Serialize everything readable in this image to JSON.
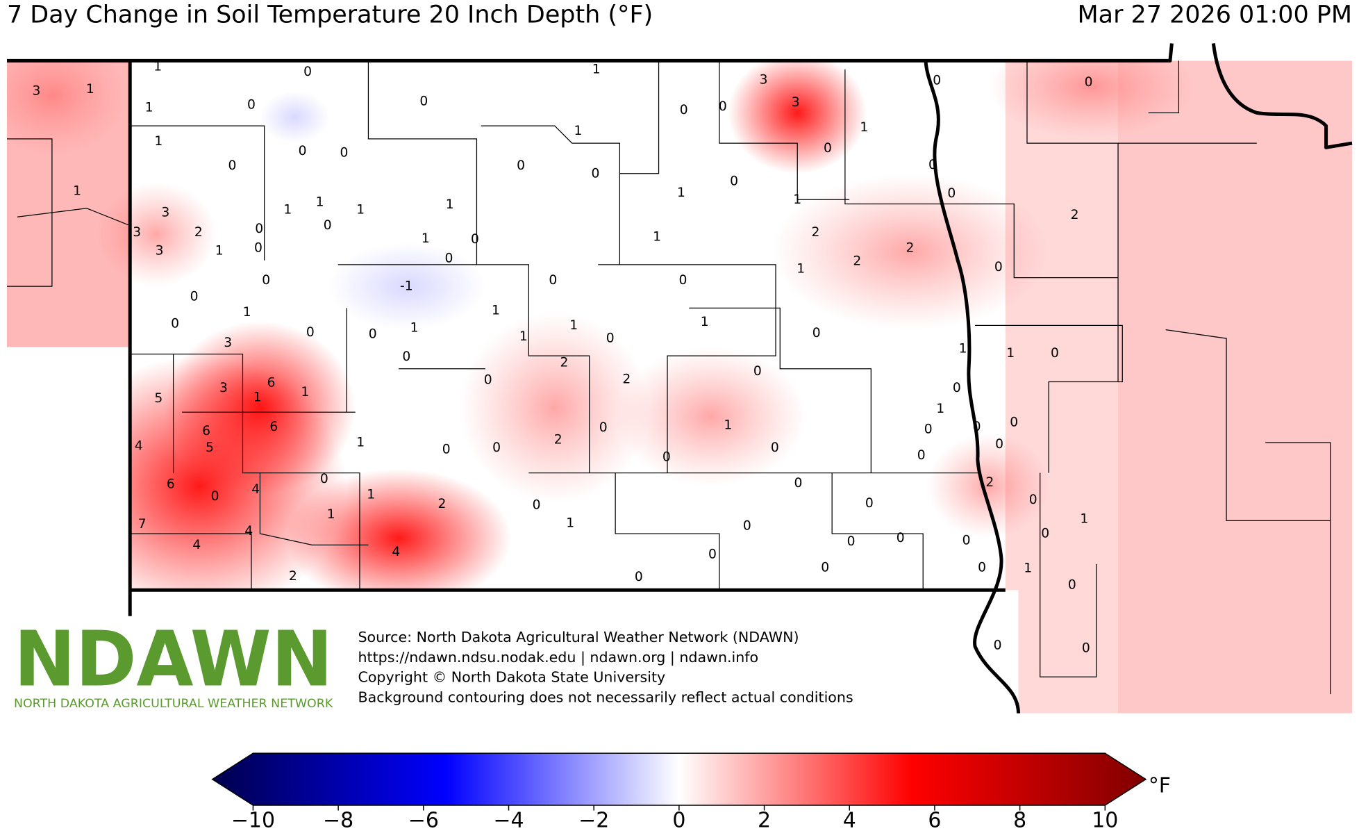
{
  "header": {
    "title": "7 Day Change in Soil Temperature 20 Inch Depth (°F)",
    "timestamp": "Mar 27 2026 01:00 PM"
  },
  "station_values": [
    3,
    1,
    1,
    1,
    0,
    0,
    1,
    0,
    0,
    0,
    1,
    3,
    3,
    2,
    3,
    1,
    0,
    0,
    1,
    1,
    0,
    1,
    0,
    0,
    0,
    1,
    3,
    0,
    5,
    3,
    6,
    1,
    1,
    4,
    6,
    5,
    6,
    1,
    6,
    0,
    4,
    0,
    7,
    4,
    4,
    1,
    1,
    2,
    4,
    2,
    0,
    0,
    0,
    1,
    0,
    0,
    0,
    0,
    0,
    0,
    0,
    0,
    0,
    0,
    1,
    2,
    0,
    0,
    1,
    0,
    0,
    0,
    -1,
    1,
    0,
    0,
    1,
    1,
    0,
    0,
    0,
    1,
    1,
    0,
    1,
    2,
    0,
    2,
    0,
    2,
    0,
    1,
    0,
    0,
    1,
    0,
    1,
    1,
    0,
    0,
    0,
    1,
    1,
    0,
    0,
    0,
    3,
    3,
    0,
    1,
    1,
    2,
    1,
    2,
    2,
    0,
    0,
    0,
    0,
    2,
    0,
    0,
    1,
    1,
    0,
    0,
    1,
    0,
    0,
    0,
    0,
    0
  ],
  "logo": {
    "name": "NDAWN",
    "subtitle": "NORTH DAKOTA AGRICULTURAL WEATHER NETWORK"
  },
  "source_lines": [
    "Source: North Dakota Agricultural Weather Network (NDAWN)",
    "https://ndawn.ndsu.nodak.edu | ndawn.org | ndawn.info",
    "Copyright © North Dakota State University",
    "Background contouring does not necessarily reflect actual conditions"
  ],
  "colorbar": {
    "lim": [
      -10,
      10
    ],
    "unit": "°F",
    "ticks": [
      {
        "value": -10,
        "label": "−10"
      },
      {
        "value": -8,
        "label": "−8"
      },
      {
        "value": -6,
        "label": "−6"
      },
      {
        "value": -4,
        "label": "−4"
      },
      {
        "value": -2,
        "label": "−2"
      },
      0,
      2,
      4,
      6,
      8,
      10
    ]
  }
}
